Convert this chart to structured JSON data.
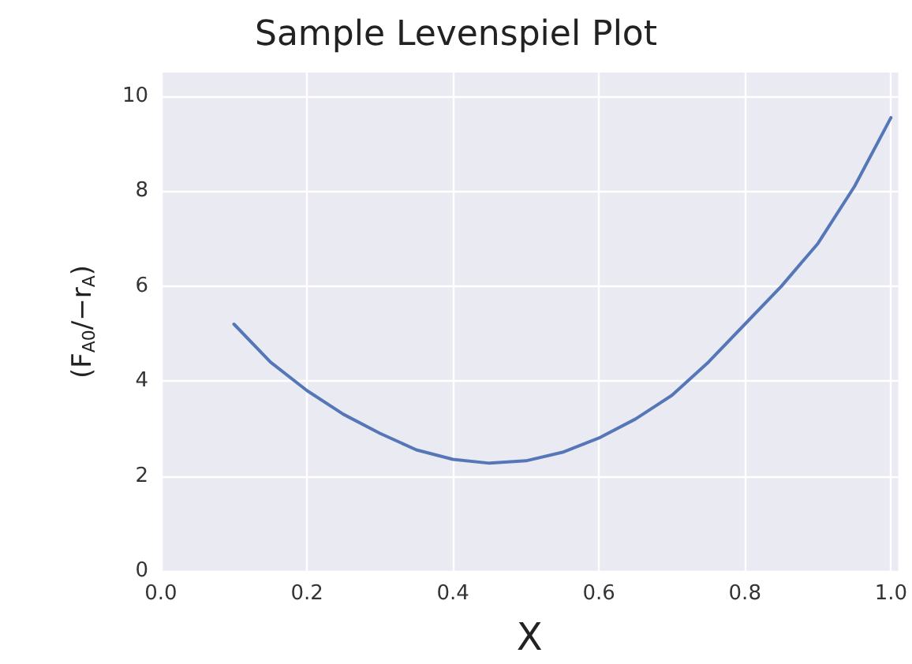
{
  "chart_data": {
    "type": "line",
    "title": "Sample Levenspiel Plot",
    "xlabel": "X",
    "ylabel": "(F$_{A0}$/−r$_{A}$)",
    "x": [
      0.1,
      0.15,
      0.2,
      0.25,
      0.3,
      0.35,
      0.4,
      0.45,
      0.5,
      0.55,
      0.6,
      0.65,
      0.7,
      0.75,
      0.8,
      0.85,
      0.9,
      0.95,
      1.0
    ],
    "series": [
      {
        "color": "#5577b8",
        "values": [
          5.2,
          4.4,
          3.8,
          3.3,
          2.9,
          2.55,
          2.35,
          2.27,
          2.32,
          2.5,
          2.8,
          3.2,
          3.7,
          4.4,
          5.2,
          6.0,
          6.9,
          8.1,
          9.55
        ]
      }
    ],
    "xlim": [
      0,
      1.01
    ],
    "ylim": [
      0,
      10.5
    ],
    "xticks": [
      {
        "value": 0,
        "label": "0.0"
      },
      {
        "value": 0.2,
        "label": "0.2"
      },
      {
        "value": 0.4,
        "label": "0.4"
      },
      {
        "value": 0.6,
        "label": "0.6"
      },
      {
        "value": 0.8,
        "label": "0.8"
      },
      {
        "value": 1,
        "label": "1.0"
      }
    ],
    "yticks": [
      0,
      2,
      4,
      6,
      8,
      10
    ],
    "grid": true,
    "marker": "none",
    "line_style": "solid"
  }
}
